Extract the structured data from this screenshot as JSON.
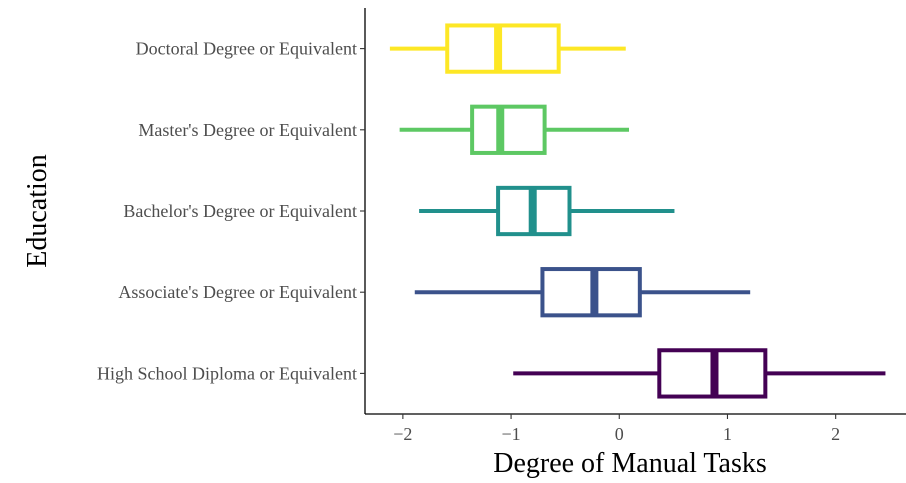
{
  "chart_data": {
    "type": "boxplot",
    "orientation": "horizontal",
    "xlabel": "Degree of Manual Tasks",
    "ylabel": "Education",
    "xlim": [
      -2.35,
      2.65
    ],
    "xticks": [
      -2,
      -1,
      0,
      1,
      2
    ],
    "xtick_labels": [
      "−2",
      "−1",
      "0",
      "1",
      "2"
    ],
    "grid": false,
    "legend": "none",
    "categories": [
      "High School Diploma or Equivalent",
      "Associate's Degree or Equivalent",
      "Bachelor's Degree or Equivalent",
      "Master's Degree or Equivalent",
      "Doctoral Degree or Equivalent"
    ],
    "boxes": [
      {
        "category": "High School Diploma or Equivalent",
        "whisker_low": -0.98,
        "q1": 0.37,
        "median": 0.88,
        "q3": 1.35,
        "whisker_high": 2.46,
        "color": "#440154"
      },
      {
        "category": "Associate's Degree or Equivalent",
        "whisker_low": -1.89,
        "q1": -0.71,
        "median": -0.23,
        "q3": 0.19,
        "whisker_high": 1.21,
        "color": "#3B528B"
      },
      {
        "category": "Bachelor's Degree or Equivalent",
        "whisker_low": -1.85,
        "q1": -1.12,
        "median": -0.8,
        "q3": -0.46,
        "whisker_high": 0.51,
        "color": "#21908C"
      },
      {
        "category": "Master's Degree or Equivalent",
        "whisker_low": -2.03,
        "q1": -1.36,
        "median": -1.1,
        "q3": -0.69,
        "whisker_high": 0.09,
        "color": "#5DC863"
      },
      {
        "category": "Doctoral Degree or Equivalent",
        "whisker_low": -2.12,
        "q1": -1.59,
        "median": -1.12,
        "q3": -0.56,
        "whisker_high": 0.06,
        "color": "#FDE725"
      }
    ]
  }
}
